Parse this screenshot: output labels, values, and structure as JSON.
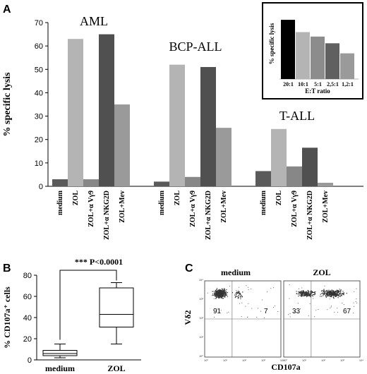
{
  "panel_labels": {
    "a": "A",
    "b": "B",
    "c": "C"
  },
  "chart_data": [
    {
      "type": "bar",
      "ylabel": "% specific lysis",
      "ylim": [
        0,
        70
      ],
      "yticks": [
        "0",
        "10",
        "20",
        "30",
        "40",
        "50",
        "60",
        "70"
      ],
      "categories": [
        "medium",
        "ZOL",
        "ZOL+α Vγ9",
        "ZOL+α NKG2D",
        "ZOL+Mev"
      ],
      "colors": [
        "#5a5a5a",
        "#b4b4b4",
        "#878787",
        "#505050",
        "#9a9a9a"
      ],
      "groups": [
        {
          "name": "AML",
          "values": [
            3,
            63,
            3,
            65,
            35
          ]
        },
        {
          "name": "BCP-ALL",
          "values": [
            2,
            52,
            4,
            51,
            25
          ]
        },
        {
          "name": "T-ALL",
          "values": [
            6.5,
            24.5,
            8.5,
            16.5,
            1.5
          ]
        }
      ]
    },
    {
      "type": "bar",
      "xlabel": "E:T ratio",
      "ylabel": "% specific lysis",
      "categories": [
        "20:1",
        "10:1",
        "5:1",
        "2,5:1",
        "1,2:1"
      ],
      "values": [
        53,
        42,
        38,
        32,
        23
      ],
      "ylim": [
        0,
        60
      ],
      "colors": [
        "#000000",
        "#b4b4b4",
        "#8c8c8c",
        "#606060",
        "#9a9a9a"
      ]
    },
    {
      "type": "box",
      "ylabel": "% CD107a⁺ cells",
      "ylim": [
        0,
        80
      ],
      "yticks": [
        "0",
        "20",
        "40",
        "60",
        "80"
      ],
      "categories": [
        "medium",
        "ZOL"
      ],
      "boxes": [
        {
          "min": 2,
          "q1": 4,
          "median": 6,
          "q3": 9,
          "max": 15
        },
        {
          "min": 15,
          "q1": 31,
          "median": 43,
          "q3": 68,
          "max": 73
        }
      ],
      "annotation": "*** P<0.0001"
    }
  ],
  "flow": {
    "ylabel": "Vδ2",
    "xlabel": "CD107a",
    "plots": [
      {
        "title": "medium",
        "q_upper_left": "91",
        "q_upper_right": "7"
      },
      {
        "title": "ZOL",
        "q_upper_left": "33",
        "q_upper_right": "67"
      }
    ],
    "axis_tick_labels": [
      "10⁰",
      "10¹",
      "10²",
      "10³",
      "10⁴"
    ]
  }
}
